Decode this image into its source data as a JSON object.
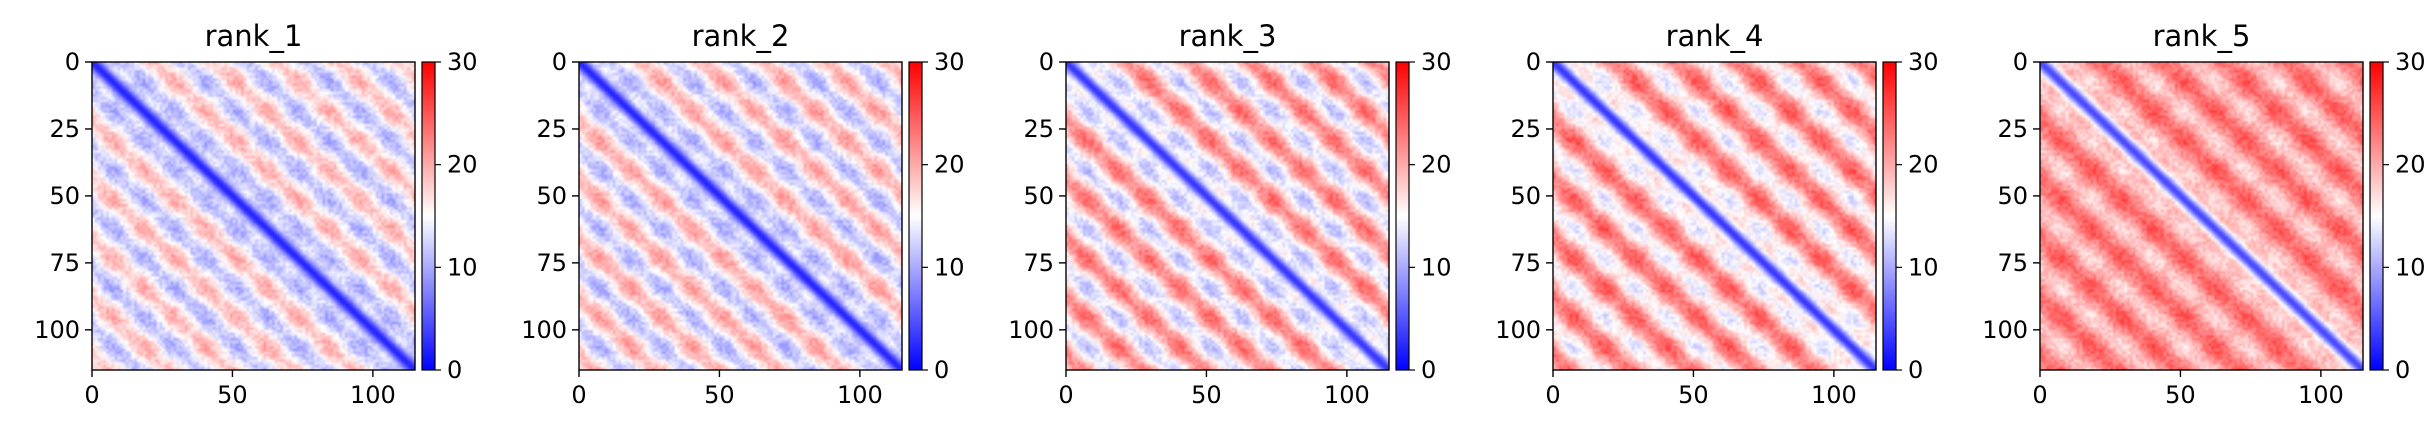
{
  "chart_data": [
    {
      "type": "heatmap",
      "title": "rank_1",
      "x_ticks": [
        0,
        50,
        100
      ],
      "y_ticks": [
        0,
        25,
        50,
        75,
        100
      ],
      "xlim": [
        0,
        115
      ],
      "ylim": [
        115,
        0
      ],
      "colorbar": {
        "ticks": [
          0,
          10,
          20,
          30
        ],
        "range": [
          0,
          30
        ],
        "colormap": "bwr"
      },
      "grid": false,
      "block_period": 22,
      "diagonal_value": 2,
      "offdiag_low": 10,
      "offdiag_high": 20
    },
    {
      "type": "heatmap",
      "title": "rank_2",
      "x_ticks": [
        0,
        50,
        100
      ],
      "y_ticks": [
        0,
        25,
        50,
        75,
        100
      ],
      "xlim": [
        0,
        115
      ],
      "ylim": [
        115,
        0
      ],
      "colorbar": {
        "ticks": [
          0,
          10,
          20,
          30
        ],
        "range": [
          0,
          30
        ],
        "colormap": "bwr"
      },
      "grid": false,
      "block_period": 22,
      "diagonal_value": 2,
      "offdiag_low": 10,
      "offdiag_high": 21
    },
    {
      "type": "heatmap",
      "title": "rank_3",
      "x_ticks": [
        0,
        50,
        100
      ],
      "y_ticks": [
        0,
        25,
        50,
        75,
        100
      ],
      "xlim": [
        0,
        115
      ],
      "ylim": [
        115,
        0
      ],
      "colorbar": {
        "ticks": [
          0,
          10,
          20,
          30
        ],
        "range": [
          0,
          30
        ],
        "colormap": "bwr"
      },
      "grid": false,
      "block_period": 22,
      "diagonal_value": 3,
      "offdiag_low": 11,
      "offdiag_high": 24
    },
    {
      "type": "heatmap",
      "title": "rank_4",
      "x_ticks": [
        0,
        50,
        100
      ],
      "y_ticks": [
        0,
        25,
        50,
        75,
        100
      ],
      "xlim": [
        0,
        115
      ],
      "ylim": [
        115,
        0
      ],
      "colorbar": {
        "ticks": [
          0,
          10,
          20,
          30
        ],
        "range": [
          0,
          30
        ],
        "colormap": "bwr"
      },
      "grid": false,
      "block_period": 22,
      "diagonal_value": 3,
      "offdiag_low": 13,
      "offdiag_high": 25
    },
    {
      "type": "heatmap",
      "title": "rank_5",
      "x_ticks": [
        0,
        50,
        100
      ],
      "y_ticks": [
        0,
        25,
        50,
        75,
        100
      ],
      "xlim": [
        0,
        115
      ],
      "ylim": [
        115,
        0
      ],
      "colorbar": {
        "ticks": [
          0,
          10,
          20,
          30
        ],
        "range": [
          0,
          30
        ],
        "colormap": "bwr"
      },
      "grid": false,
      "block_period": 22,
      "diagonal_value": 4,
      "offdiag_low": 17,
      "offdiag_high": 25
    }
  ]
}
